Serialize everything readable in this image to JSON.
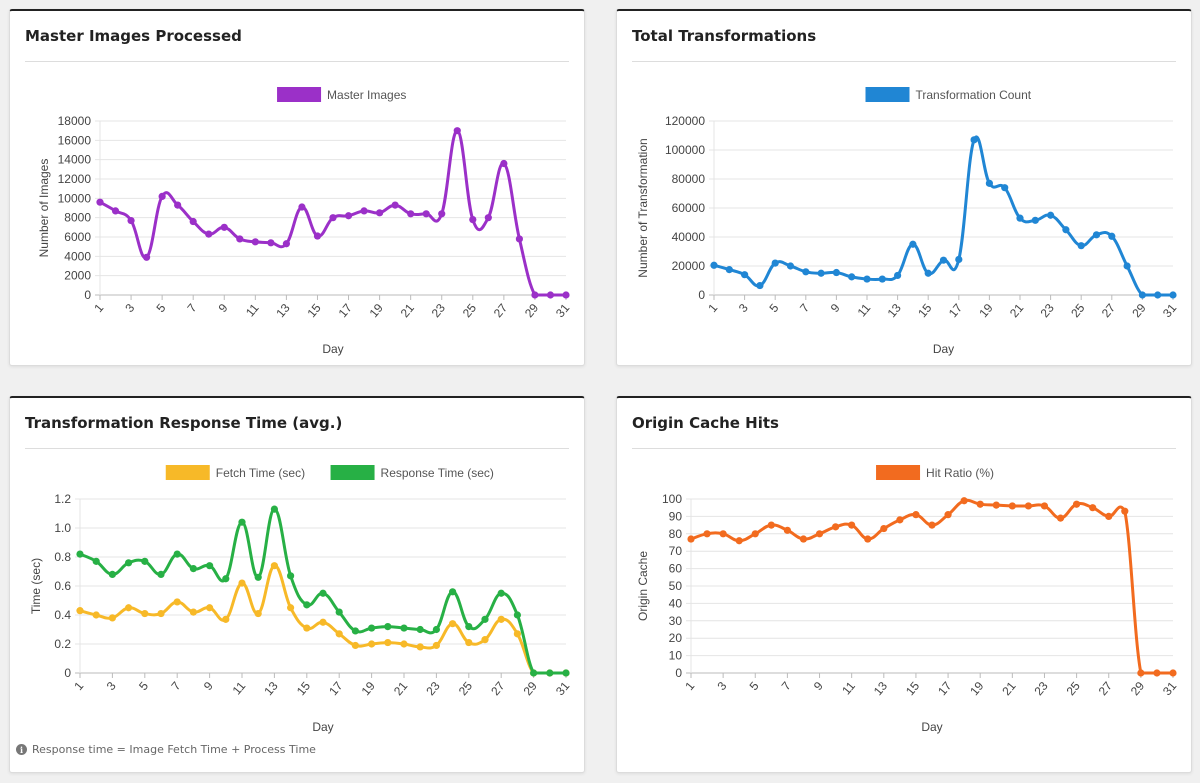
{
  "charts": [
    {
      "title": "Master Images Processed",
      "type": "line",
      "xlabel": "Day",
      "ylabel": "Number of Images",
      "ylim": [
        0,
        18000
      ],
      "ystep": 2000,
      "x": [
        1,
        2,
        3,
        4,
        5,
        6,
        7,
        8,
        9,
        10,
        11,
        12,
        13,
        14,
        15,
        16,
        17,
        18,
        19,
        20,
        21,
        22,
        23,
        24,
        25,
        26,
        27,
        28,
        29,
        30,
        31
      ],
      "xticks": [
        "1",
        "3",
        "5",
        "7",
        "9",
        "11",
        "13",
        "15",
        "17",
        "19",
        "21",
        "23",
        "25",
        "27",
        "29",
        "31"
      ],
      "series": [
        {
          "name": "Master Images",
          "color": "#9b30c8",
          "values": [
            9600,
            8700,
            7700,
            3900,
            10200,
            9300,
            7600,
            6300,
            7000,
            5800,
            5500,
            5400,
            5300,
            9100,
            6100,
            8000,
            8200,
            8700,
            8500,
            9300,
            8400,
            8400,
            8400,
            17000,
            7800,
            8000,
            13600,
            5800,
            0,
            0,
            0
          ]
        }
      ],
      "legend": "top-center"
    },
    {
      "title": "Total Transformations",
      "type": "line",
      "xlabel": "Day",
      "ylabel": "Number of Transformation",
      "ylim": [
        0,
        120000
      ],
      "ystep": 20000,
      "x": [
        1,
        2,
        3,
        4,
        5,
        6,
        7,
        8,
        9,
        10,
        11,
        12,
        13,
        14,
        15,
        16,
        17,
        18,
        19,
        20,
        21,
        22,
        23,
        24,
        25,
        26,
        27,
        28,
        29,
        30,
        31
      ],
      "xticks": [
        "1",
        "3",
        "5",
        "7",
        "9",
        "11",
        "13",
        "15",
        "17",
        "19",
        "21",
        "23",
        "25",
        "27",
        "29",
        "31"
      ],
      "series": [
        {
          "name": "Transformation Count",
          "color": "#2086d4",
          "values": [
            20500,
            17500,
            14000,
            6500,
            22000,
            20000,
            16000,
            15000,
            15500,
            12500,
            11000,
            11000,
            13500,
            35000,
            15000,
            24000,
            24500,
            107000,
            77000,
            74000,
            53000,
            51500,
            55000,
            45000,
            34000,
            41500,
            40500,
            20000,
            0,
            0,
            0
          ]
        }
      ],
      "legend": "top-center"
    },
    {
      "title": "Transformation Response Time (avg.)",
      "type": "line",
      "xlabel": "Day",
      "ylabel": "Time (sec)",
      "ylim": [
        0,
        1.2
      ],
      "ystep": 0.2,
      "x": [
        1,
        2,
        3,
        4,
        5,
        6,
        7,
        8,
        9,
        10,
        11,
        12,
        13,
        14,
        15,
        16,
        17,
        18,
        19,
        20,
        21,
        22,
        23,
        24,
        25,
        26,
        27,
        28,
        29,
        30,
        31
      ],
      "xticks": [
        "1",
        "3",
        "5",
        "7",
        "9",
        "11",
        "13",
        "15",
        "17",
        "19",
        "21",
        "23",
        "25",
        "27",
        "29",
        "31"
      ],
      "series": [
        {
          "name": "Fetch Time (sec)",
          "color": "#f7b928",
          "values": [
            0.43,
            0.4,
            0.38,
            0.45,
            0.41,
            0.41,
            0.49,
            0.42,
            0.45,
            0.37,
            0.62,
            0.41,
            0.74,
            0.45,
            0.31,
            0.35,
            0.27,
            0.19,
            0.2,
            0.21,
            0.2,
            0.18,
            0.19,
            0.34,
            0.21,
            0.23,
            0.37,
            0.27,
            0,
            0,
            0
          ]
        },
        {
          "name": "Response Time (sec)",
          "color": "#27b045",
          "values": [
            0.82,
            0.77,
            0.68,
            0.76,
            0.77,
            0.68,
            0.82,
            0.72,
            0.74,
            0.65,
            1.04,
            0.66,
            1.13,
            0.67,
            0.47,
            0.55,
            0.42,
            0.29,
            0.31,
            0.32,
            0.31,
            0.3,
            0.3,
            0.56,
            0.32,
            0.37,
            0.55,
            0.4,
            0,
            0,
            0
          ]
        }
      ],
      "legend": "top-center",
      "note": "Response time = Image Fetch Time + Process Time"
    },
    {
      "title": "Origin Cache Hits",
      "type": "line",
      "xlabel": "Day",
      "ylabel": "Origin Cache",
      "ylim": [
        0,
        100
      ],
      "ystep": 10,
      "x": [
        1,
        2,
        3,
        4,
        5,
        6,
        7,
        8,
        9,
        10,
        11,
        12,
        13,
        14,
        15,
        16,
        17,
        18,
        19,
        20,
        21,
        22,
        23,
        24,
        25,
        26,
        27,
        28,
        29,
        30,
        31
      ],
      "xticks": [
        "1",
        "3",
        "5",
        "7",
        "9",
        "11",
        "13",
        "15",
        "17",
        "19",
        "21",
        "23",
        "25",
        "27",
        "29",
        "31"
      ],
      "series": [
        {
          "name": "Hit Ratio (%)",
          "color": "#f26b1f",
          "values": [
            77,
            80,
            80,
            76,
            80,
            85,
            82,
            77,
            80,
            84,
            85,
            77,
            83,
            88,
            91,
            85,
            91,
            99,
            97,
            96.5,
            96,
            96,
            96,
            89,
            97,
            95,
            90,
            93,
            0,
            0,
            0
          ]
        }
      ],
      "legend": "top-center"
    }
  ]
}
